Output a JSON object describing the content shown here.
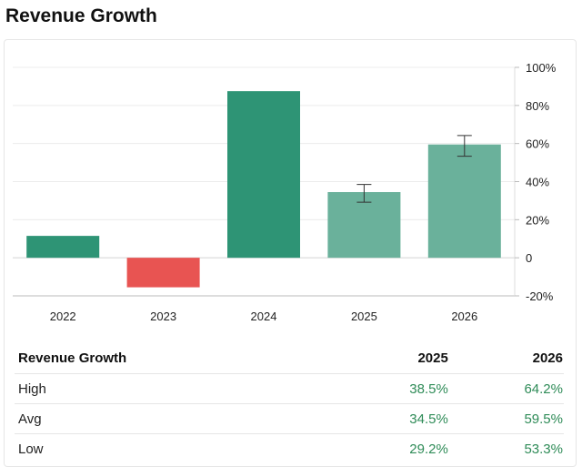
{
  "page": {
    "title": "Revenue Growth"
  },
  "chart_data": {
    "type": "bar",
    "categories": [
      "2022",
      "2023",
      "2024",
      "2025",
      "2026"
    ],
    "values": [
      11.5,
      -15.5,
      87.5,
      34.5,
      59.5
    ],
    "error_bars": [
      null,
      null,
      null,
      {
        "low": 29.2,
        "high": 38.5
      },
      {
        "low": 53.3,
        "high": 64.2
      }
    ],
    "estimated": [
      false,
      false,
      false,
      true,
      true
    ],
    "ylim": [
      -20,
      100
    ],
    "yticks": [
      -20,
      0,
      20,
      40,
      60,
      80,
      100
    ],
    "ytick_labels": [
      "-20%",
      "0",
      "20%",
      "40%",
      "60%",
      "80%",
      "100%"
    ],
    "y_axis_side": "right",
    "grid": true,
    "colors": {
      "positive": "#2e9475",
      "negative": "#e85452",
      "estimate": "#6ab19b"
    }
  },
  "table": {
    "header": [
      "Revenue Growth",
      "2025",
      "2026"
    ],
    "rows": [
      {
        "label": "High",
        "values": [
          "38.5%",
          "64.2%"
        ]
      },
      {
        "label": "Avg",
        "values": [
          "34.5%",
          "59.5%"
        ]
      },
      {
        "label": "Low",
        "values": [
          "29.2%",
          "53.3%"
        ]
      }
    ]
  }
}
